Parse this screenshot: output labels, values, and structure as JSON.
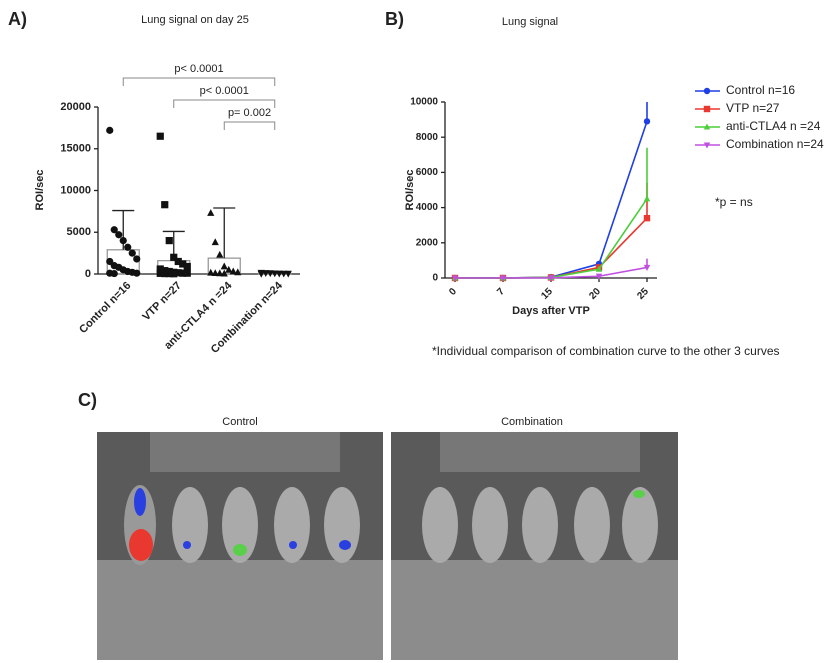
{
  "chart_data": [
    {
      "type": "bar",
      "panel": "A)",
      "title": "Lung signal on day 25",
      "ylabel": "ROI/sec",
      "categories": [
        "Control n=16",
        "VTP n=27",
        "anti-CTLA4 n =24",
        "Combination n=24"
      ],
      "values": [
        2900,
        1600,
        1900,
        100
      ],
      "errors": [
        4700,
        3500,
        6000,
        50
      ],
      "markers": [
        "circle",
        "square",
        "triangle",
        "triangle-down"
      ],
      "points": [
        [
          17200,
          5300,
          4700,
          4000,
          3200,
          2500,
          1800,
          1500,
          1000,
          800,
          500,
          300,
          200,
          100,
          100,
          50
        ],
        [
          16500,
          8300,
          4000,
          2000,
          1500,
          1200,
          900,
          600,
          400,
          300,
          200,
          150,
          100,
          100,
          80,
          50,
          50,
          30
        ],
        [
          7300,
          3800,
          2300,
          900,
          500,
          300,
          200,
          150,
          100,
          80,
          50
        ],
        [
          150,
          120,
          100,
          80,
          60,
          50,
          40,
          30
        ]
      ],
      "ylim": [
        0,
        20000
      ],
      "yticks": [
        0,
        5000,
        10000,
        15000,
        20000
      ],
      "annotations": [
        "p< 0.0001",
        "p< 0.0001",
        "p= 0.002"
      ]
    },
    {
      "type": "line",
      "panel": "B)",
      "title": "Lung signal",
      "ylabel": "ROI/sec",
      "xlabel": "Days after VTP",
      "categories": [
        "0",
        "7",
        "15",
        "20",
        "25"
      ],
      "series": [
        {
          "name": "Control n=16",
          "color": "#1f3fe6",
          "marker": "circle",
          "values": [
            0,
            0,
            50,
            800,
            8900
          ],
          "errors": [
            0,
            0,
            30,
            150,
            1100
          ]
        },
        {
          "name": "VTP n=27",
          "color": "#e8382f",
          "marker": "square",
          "values": [
            0,
            0,
            30,
            600,
            3400
          ],
          "errors": [
            0,
            0,
            20,
            150,
            2000
          ]
        },
        {
          "name": "anti-CTLA4 n =24",
          "color": "#4ccd3a",
          "marker": "triangle",
          "values": [
            0,
            0,
            30,
            500,
            4500
          ],
          "errors": [
            0,
            0,
            20,
            150,
            2900
          ]
        },
        {
          "name": "Combination n=24",
          "color": "#c050e0",
          "marker": "triangle-down",
          "values": [
            0,
            0,
            10,
            100,
            600
          ],
          "errors": [
            0,
            0,
            10,
            50,
            500
          ]
        }
      ],
      "ylim": [
        0,
        10000
      ],
      "yticks": [
        0,
        2000,
        4000,
        6000,
        8000,
        10000
      ],
      "annotations": [
        "*p  = ns",
        "*Individual comparison of combination curve to the other 3 curves"
      ]
    }
  ],
  "panel_c": {
    "label": "C)",
    "images": [
      "Control",
      "Combination"
    ]
  }
}
